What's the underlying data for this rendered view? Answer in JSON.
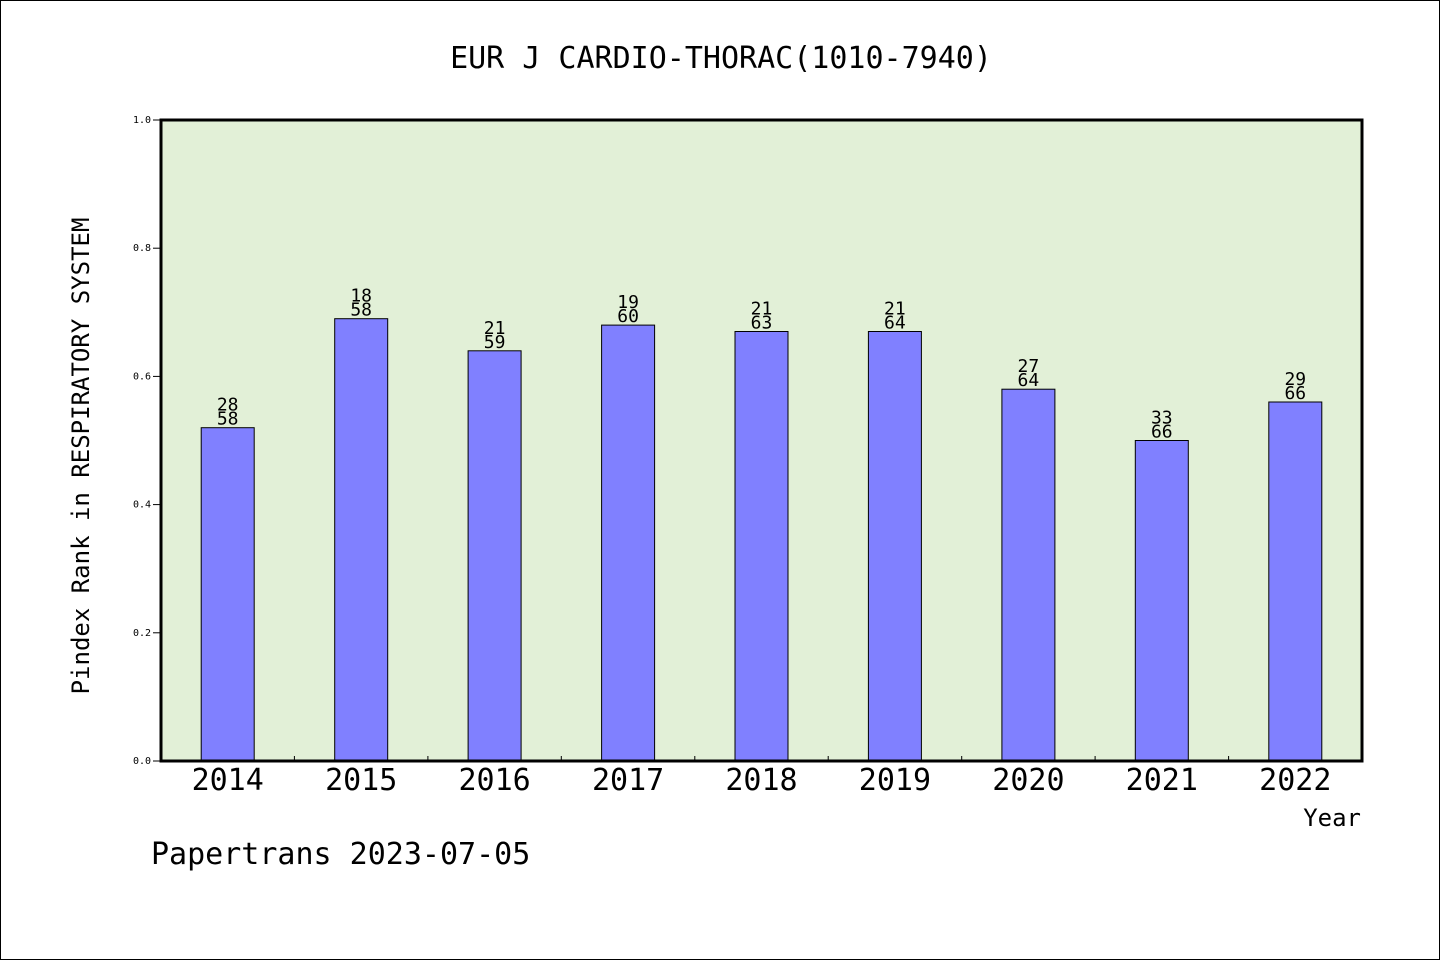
{
  "chart_data": {
    "type": "bar",
    "title": "EUR J CARDIO-THORAC(1010-7940)",
    "xlabel": "Year",
    "ylabel": "Pindex Rank in RESPIRATORY SYSTEM",
    "categories": [
      "2014",
      "2015",
      "2016",
      "2017",
      "2018",
      "2019",
      "2020",
      "2021",
      "2022"
    ],
    "values": [
      0.52,
      0.69,
      0.64,
      0.68,
      0.67,
      0.67,
      0.58,
      0.5,
      0.56
    ],
    "rank_labels": [
      "28",
      "18",
      "21",
      "19",
      "21",
      "21",
      "27",
      "33",
      "29"
    ],
    "total_labels": [
      "58",
      "58",
      "59",
      "60",
      "63",
      "64",
      "64",
      "66",
      "66"
    ],
    "ylim": [
      0.0,
      1.0
    ],
    "yticks": [
      "0.0",
      "0.2",
      "0.4",
      "0.6",
      "0.8",
      "1.0"
    ],
    "grid": false,
    "legend": "none",
    "colors": {
      "bar_fill": "#8080ff",
      "plot_background": "#e2f0d7",
      "axis": "#000000"
    }
  },
  "footer": "Papertrans 2023-07-05"
}
